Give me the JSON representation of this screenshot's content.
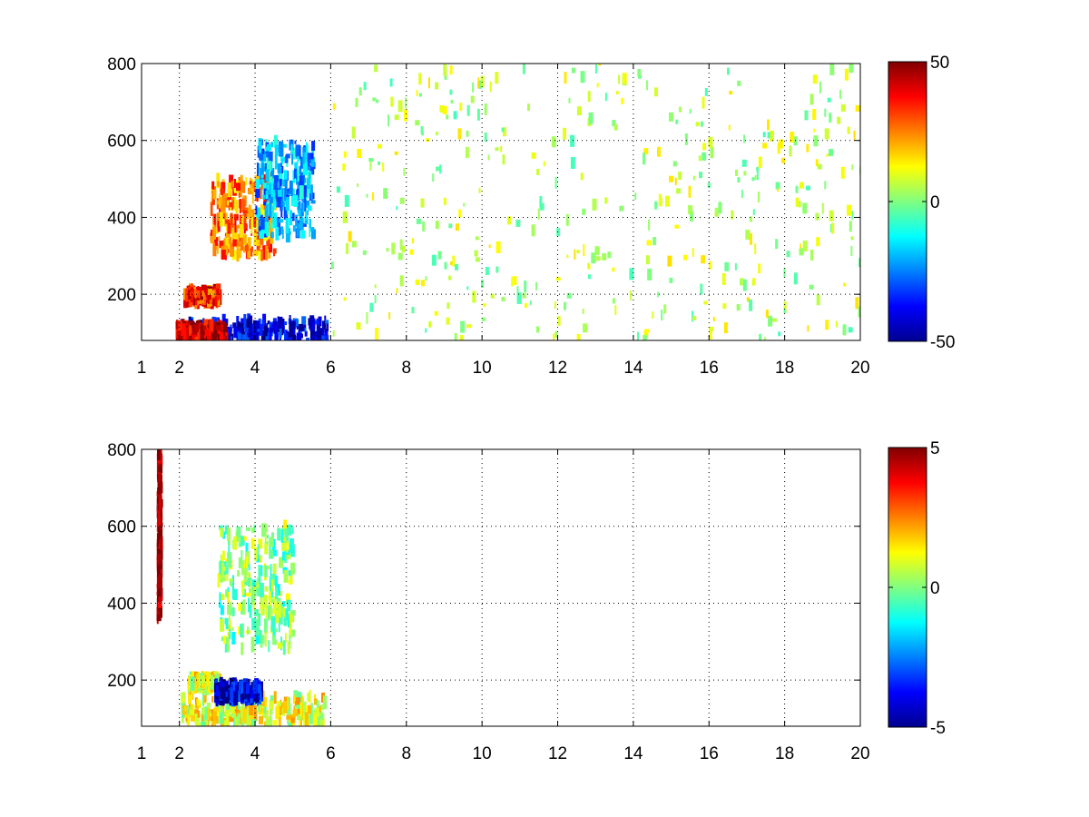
{
  "chart_data": [
    {
      "type": "heatmap",
      "title": "",
      "xlabel": "",
      "ylabel": "",
      "xlim": [
        1,
        20
      ],
      "ylim": [
        80,
        800
      ],
      "xticks": [
        1,
        2,
        4,
        6,
        8,
        10,
        12,
        14,
        16,
        18,
        20
      ],
      "xtick_labels": [
        "1",
        "2",
        "4",
        "6",
        "8",
        "10",
        "12",
        "14",
        "16",
        "18",
        "20"
      ],
      "yticks": [
        200,
        400,
        600,
        800
      ],
      "ytick_labels": [
        "200",
        "400",
        "600",
        "800"
      ],
      "grid": true,
      "colormap": "jet",
      "clim": [
        -50,
        50
      ],
      "colorbar_ticks": [
        50,
        0,
        -50
      ],
      "colorbar_labels": [
        "50",
        "0",
        "-50"
      ],
      "colors": {
        "low": "#00008f",
        "mid": "#80ff80",
        "high": "#800000",
        "background": "#ffffff"
      },
      "features": [
        {
          "x": [
            2.0,
            5.9
          ],
          "y": [
            80,
            130
          ],
          "value": -40
        },
        {
          "x": [
            1.9,
            3.2
          ],
          "y": [
            80,
            120
          ],
          "value": 45
        },
        {
          "x": [
            2.1,
            3.0
          ],
          "y": [
            180,
            210
          ],
          "value": 35
        },
        {
          "x": [
            2.8,
            4.5
          ],
          "y": [
            300,
            500
          ],
          "value": 25
        },
        {
          "x": [
            4.0,
            5.5
          ],
          "y": [
            350,
            600
          ],
          "value": -20
        },
        {
          "x": [
            6.0,
            20.0
          ],
          "y": [
            80,
            800
          ],
          "value": 5
        }
      ]
    },
    {
      "type": "heatmap",
      "title": "",
      "xlabel": "",
      "ylabel": "",
      "xlim": [
        1,
        20
      ],
      "ylim": [
        80,
        800
      ],
      "xticks": [
        1,
        2,
        4,
        6,
        8,
        10,
        12,
        14,
        16,
        18,
        20
      ],
      "xtick_labels": [
        "1",
        "2",
        "4",
        "6",
        "8",
        "10",
        "12",
        "14",
        "16",
        "18",
        "20"
      ],
      "yticks": [
        200,
        400,
        600,
        800
      ],
      "ytick_labels": [
        "200",
        "400",
        "600",
        "800"
      ],
      "grid": true,
      "colormap": "jet",
      "clim": [
        -5,
        5
      ],
      "colorbar_ticks": [
        5,
        0,
        -5
      ],
      "colorbar_labels": [
        "5",
        "0",
        "-5"
      ],
      "colors": {
        "low": "#00008f",
        "mid": "#80ff80",
        "high": "#800000",
        "background": "#ffffff"
      },
      "features": [
        {
          "x": [
            2.0,
            5.8
          ],
          "y": [
            80,
            160
          ],
          "value": 1
        },
        {
          "x": [
            2.2,
            3.0
          ],
          "y": [
            180,
            205
          ],
          "value": 1
        },
        {
          "x": [
            2.9,
            4.1
          ],
          "y": [
            150,
            190
          ],
          "value": -4
        },
        {
          "x": [
            3.0,
            5.0
          ],
          "y": [
            280,
            600
          ],
          "value": 0
        },
        {
          "x": [
            1.4,
            1.45
          ],
          "y": [
            360,
            790
          ],
          "value": 5
        }
      ]
    }
  ]
}
